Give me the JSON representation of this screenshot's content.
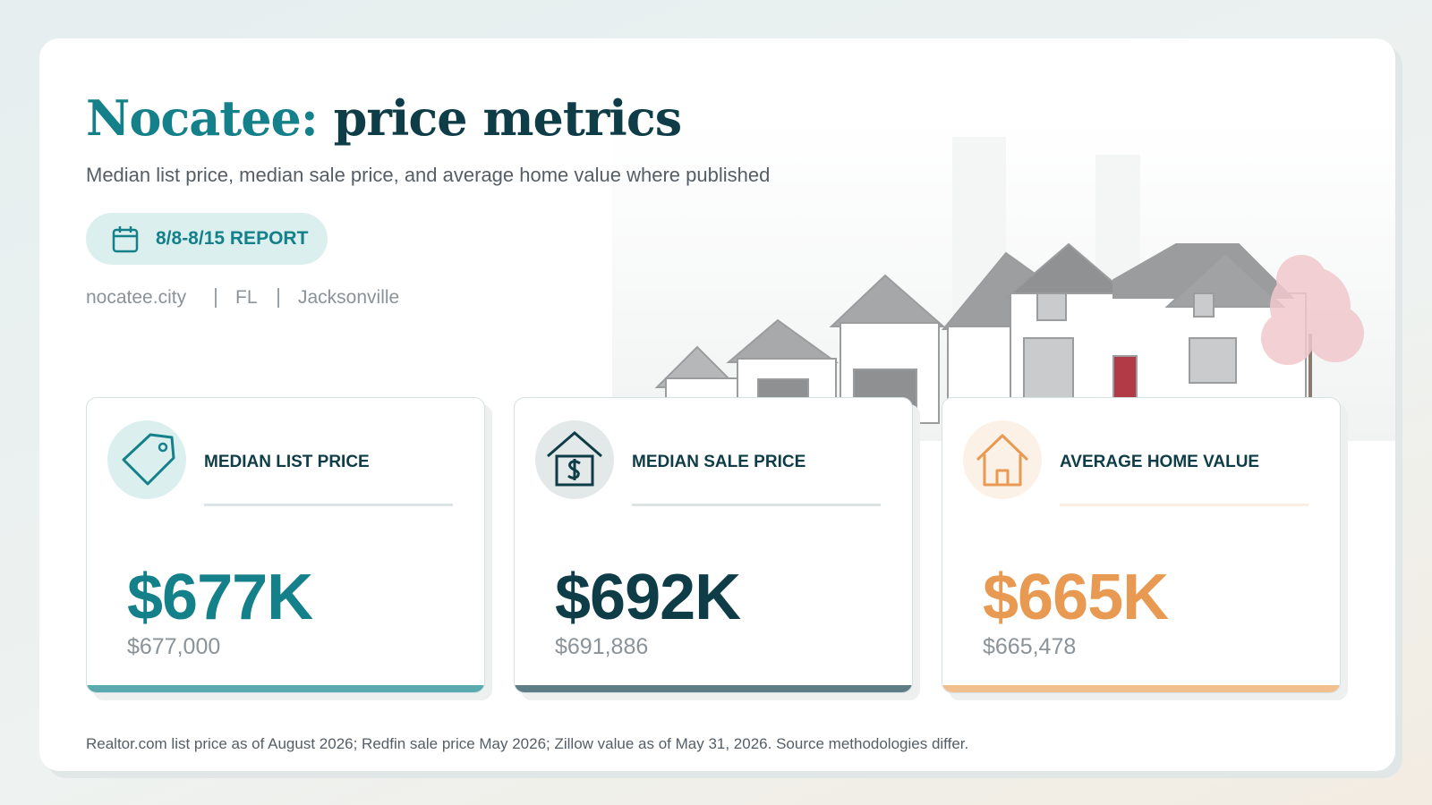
{
  "header": {
    "title_accent": "Nocatee:",
    "title_rest": "price metrics",
    "subtitle": "Median list price, median sale price, and average home value where published",
    "report": "8/8-8/15 REPORT",
    "location": [
      "nocatee.city",
      "FL",
      "Jacksonville"
    ]
  },
  "cards": [
    {
      "label": "MEDIAN LIST PRICE",
      "value": "$677K",
      "exact": "$677,000"
    },
    {
      "label": "MEDIAN SALE PRICE",
      "value": "$692K",
      "exact": "$691,886"
    },
    {
      "label": "AVERAGE HOME VALUE",
      "value": "$665K",
      "exact": "$665,478"
    }
  ],
  "footnote": "Realtor.com list price as of August 2026; Redfin sale price May 2026; Zillow value as of May 31, 2026. Source methodologies differ."
}
